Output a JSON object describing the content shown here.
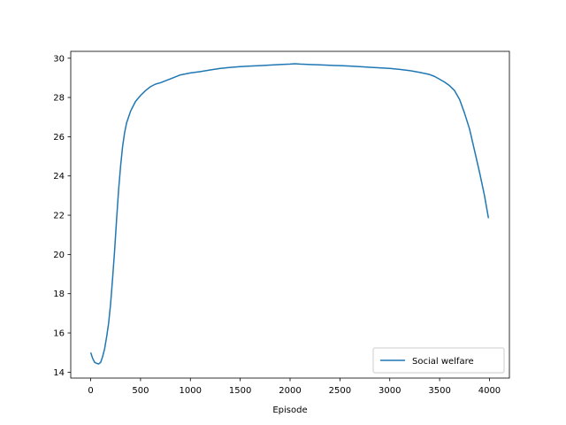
{
  "chart_data": {
    "type": "line",
    "title": "",
    "xlabel": "Episode",
    "ylabel": "",
    "xlim": [
      -200,
      4200
    ],
    "ylim": [
      13.7,
      30.35
    ],
    "x_ticks": [
      0,
      500,
      1000,
      1500,
      2000,
      2500,
      3000,
      3500,
      4000
    ],
    "y_ticks": [
      14,
      16,
      18,
      20,
      22,
      24,
      26,
      28,
      30
    ],
    "grid": false,
    "legend_position": "lower-right",
    "series": [
      {
        "name": "Social welfare",
        "color": "#1f77b4",
        "x": [
          0,
          20,
          40,
          60,
          80,
          100,
          120,
          140,
          160,
          180,
          200,
          220,
          240,
          260,
          280,
          300,
          320,
          340,
          360,
          380,
          400,
          450,
          500,
          550,
          600,
          650,
          700,
          800,
          900,
          1000,
          1100,
          1200,
          1300,
          1400,
          1500,
          1600,
          1700,
          1800,
          1900,
          2000,
          2050,
          2100,
          2200,
          2300,
          2400,
          2500,
          2600,
          2700,
          2800,
          2900,
          3000,
          3100,
          3200,
          3300,
          3400,
          3450,
          3500,
          3550,
          3600,
          3650,
          3700,
          3750,
          3800,
          3850,
          3900,
          3950,
          3990
        ],
        "values": [
          15.0,
          14.7,
          14.5,
          14.45,
          14.42,
          14.5,
          14.8,
          15.2,
          15.8,
          16.5,
          17.5,
          18.8,
          20.2,
          21.8,
          23.3,
          24.5,
          25.5,
          26.2,
          26.7,
          27.0,
          27.3,
          27.8,
          28.1,
          28.35,
          28.55,
          28.68,
          28.75,
          28.95,
          29.15,
          29.25,
          29.32,
          29.4,
          29.48,
          29.53,
          29.57,
          29.6,
          29.62,
          29.65,
          29.68,
          29.7,
          29.72,
          29.7,
          29.68,
          29.66,
          29.64,
          29.62,
          29.6,
          29.57,
          29.54,
          29.51,
          29.48,
          29.43,
          29.37,
          29.28,
          29.17,
          29.07,
          28.93,
          28.78,
          28.6,
          28.35,
          27.9,
          27.2,
          26.4,
          25.3,
          24.2,
          23.0,
          21.85
        ]
      }
    ]
  }
}
